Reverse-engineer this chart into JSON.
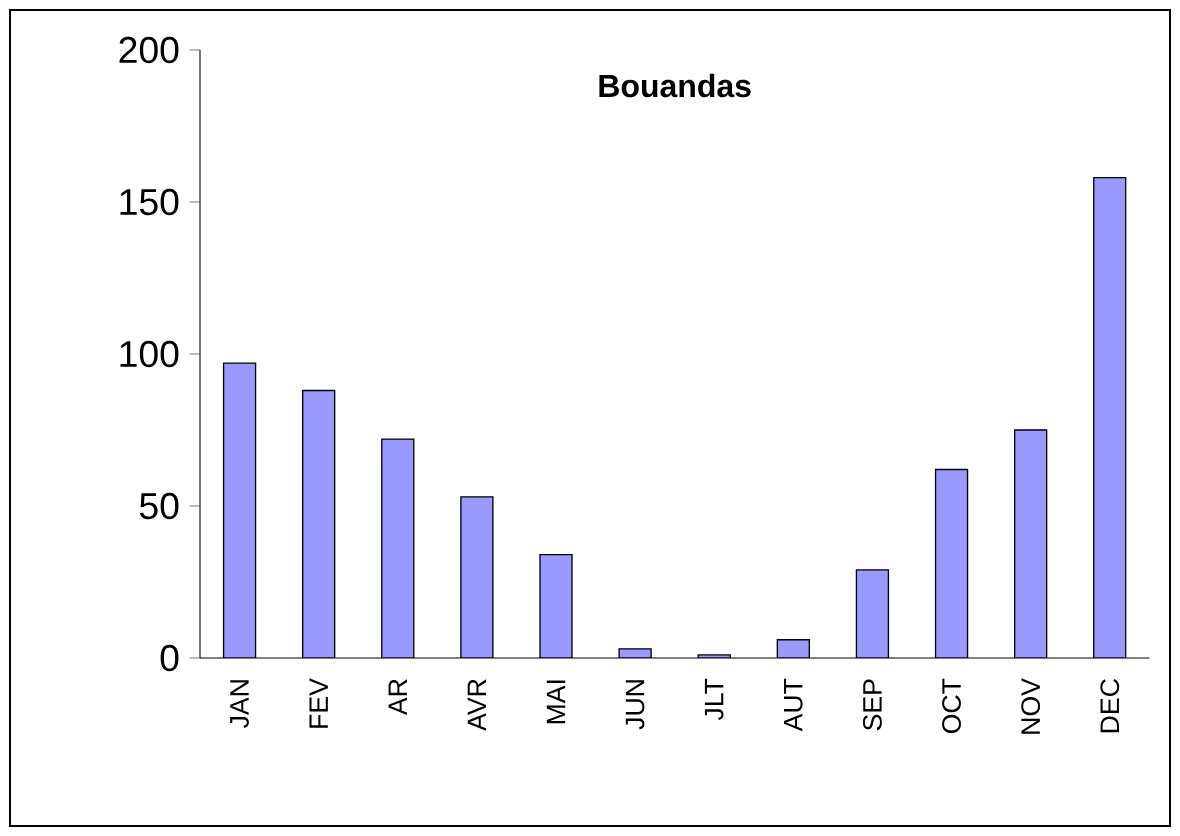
{
  "chart_data": {
    "type": "bar",
    "title": "Bouandas",
    "categories": [
      "JAN",
      "FEV",
      "AR",
      "AVR",
      "MAI",
      "JUN",
      "JLT",
      "AUT",
      "SEP",
      "OCT",
      "NOV",
      "DEC"
    ],
    "values": [
      97,
      88,
      72,
      53,
      34,
      3,
      1,
      6,
      29,
      62,
      75,
      158
    ],
    "color": "#9999ff",
    "ylim": [
      0,
      200
    ],
    "yticks": [
      0,
      50,
      100,
      150,
      200
    ],
    "grid": false
  }
}
